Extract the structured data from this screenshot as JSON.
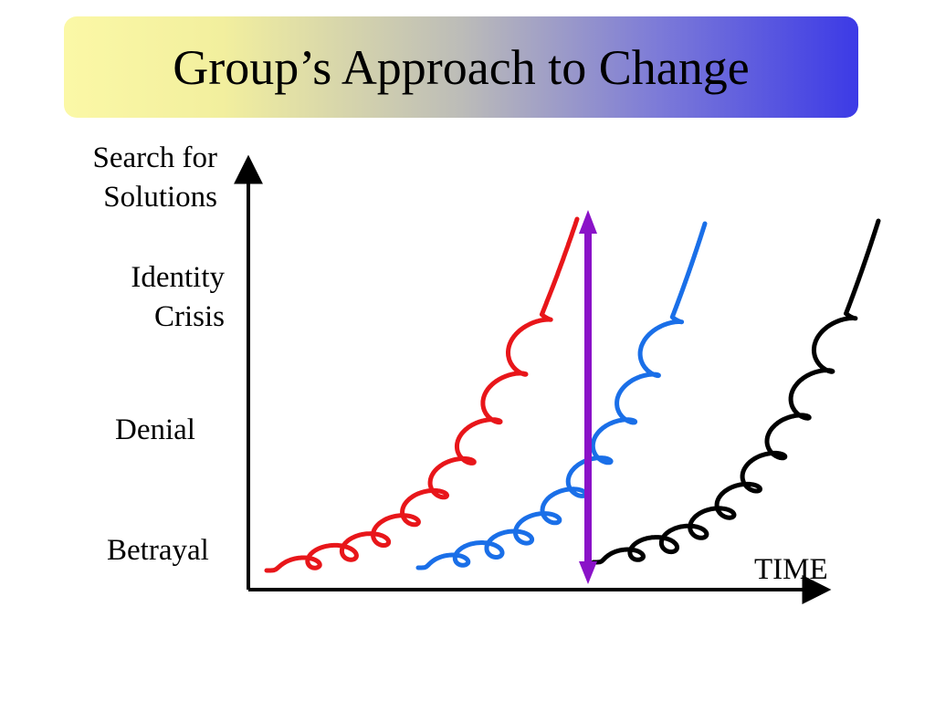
{
  "title": "Group’s Approach to Change",
  "y_axis": {
    "label_line1": "Search for",
    "label_line2": "Solutions",
    "levels": [
      {
        "line1": "Identity",
        "line2": "Crisis"
      },
      {
        "line1": "Denial",
        "line2": ""
      },
      {
        "line1": "Betrayal",
        "line2": ""
      }
    ]
  },
  "x_axis": {
    "label": "TIME"
  },
  "curves": [
    {
      "color": "#e8161a"
    },
    {
      "color": "#1a6fe8"
    },
    {
      "color": "#000000"
    }
  ],
  "marker_color": "#8a12c8"
}
